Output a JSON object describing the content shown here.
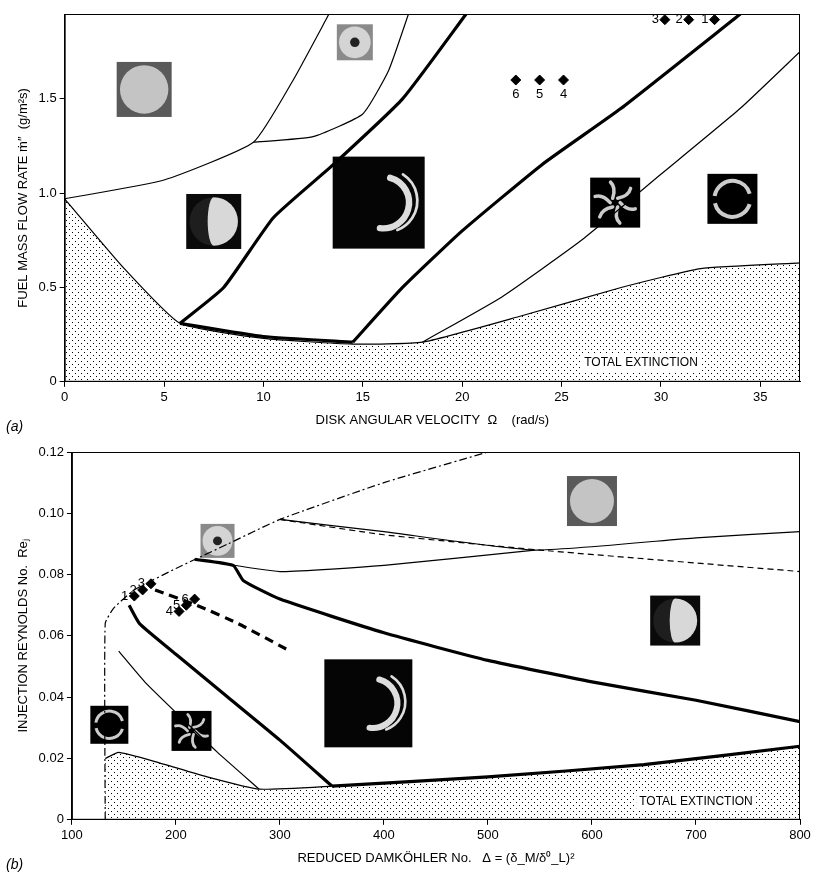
{
  "chart_data": [
    {
      "type": "line",
      "panel_label": "(a)",
      "xlabel": "DISK ANGULAR VELOCITY  Ω    (rad/s)",
      "ylabel": "FUEL MASS FLOW RATE ṁ″  (g/m²s)",
      "xlim": [
        0,
        37
      ],
      "xticks": [
        0,
        5,
        10,
        15,
        20,
        25,
        30,
        35
      ],
      "ylim": [
        0,
        1.95
      ],
      "yticks": [
        0,
        0.5,
        {
          "value": 1,
          "label": "1.0"
        },
        1.5
      ],
      "grid": false,
      "legend": "none",
      "annotations": [
        {
          "text": "TOTAL EXTINCTION",
          "x": 29,
          "y": 0.1
        }
      ],
      "series": [
        {
          "type": "area",
          "line_style": "solid",
          "color": "#000000",
          "x": [
            0,
            3,
            5.8,
            10,
            14.5,
            18,
            23,
            28,
            32,
            37
          ],
          "values": [
            0.97,
            0.6,
            0.31,
            0.23,
            0.2,
            0.21,
            0.35,
            0.5,
            0.6,
            0.63
          ]
        },
        {
          "type": "line",
          "line_style": "thick",
          "color": "#000000",
          "x": [
            5.8,
            10,
            14.5
          ],
          "values": [
            0.31,
            0.24,
            0.21
          ]
        },
        {
          "type": "line",
          "line_style": "thick",
          "color": "#000000",
          "x": [
            5.8,
            8,
            10.5,
            13.5,
            17,
            20.2
          ],
          "values": [
            0.31,
            0.5,
            0.87,
            1.15,
            1.5,
            1.95
          ]
        },
        {
          "type": "line",
          "line_style": "thick",
          "color": "#000000",
          "x": [
            14.5,
            17,
            20,
            24,
            28,
            34
          ],
          "values": [
            0.21,
            0.5,
            0.8,
            1.15,
            1.45,
            1.95
          ]
        },
        {
          "type": "line",
          "line_style": "solid",
          "color": "#000000",
          "x": [
            18,
            22,
            26,
            30,
            34,
            37
          ],
          "values": [
            0.21,
            0.45,
            0.75,
            1.1,
            1.45,
            1.75
          ]
        },
        {
          "type": "line",
          "line_style": "solid",
          "color": "#000000",
          "x": [
            0,
            5,
            9.5,
            11.5,
            13.3
          ],
          "values": [
            0.97,
            1.07,
            1.27,
            1.6,
            1.95
          ]
        },
        {
          "type": "line",
          "line_style": "solid",
          "color": "#000000",
          "x": [
            9.5,
            12.5,
            15,
            16.3,
            17.3
          ],
          "values": [
            1.27,
            1.3,
            1.42,
            1.65,
            1.95
          ]
        },
        {
          "type": "scatter",
          "marker": "diamond",
          "color": "#000000",
          "x": [
            32.7,
            31.4,
            30.2
          ],
          "values": [
            1.92,
            1.92,
            1.92
          ],
          "labels": [
            "1",
            "2",
            "3"
          ]
        },
        {
          "type": "scatter",
          "marker": "diamond",
          "color": "#000000",
          "x": [
            25.1,
            23.9,
            22.7
          ],
          "values": [
            1.6,
            1.6,
            1.6
          ],
          "labels": [
            "4",
            "5",
            "6"
          ]
        }
      ]
    },
    {
      "type": "line",
      "panel_label": "(b)",
      "xlabel": "REDUCED DAMKÖHLER No.   Δ = (δ_M/δ⁰_L)²",
      "ylabel": "INJECTION REYNOLDS No.  Reⱼ",
      "xlim": [
        100,
        800
      ],
      "xticks": [
        100,
        200,
        300,
        400,
        500,
        600,
        700,
        800
      ],
      "ylim": [
        0,
        0.12
      ],
      "yticks": [
        0,
        0.02,
        0.04,
        0.06,
        0.08,
        {
          "value": 0.1,
          "label": "0.10"
        },
        0.12
      ],
      "grid": false,
      "legend": "none",
      "annotations": [
        {
          "text": "TOTAL EXTINCTION",
          "x": 700,
          "y": 0.006
        }
      ],
      "series": [
        {
          "type": "area",
          "line_style": "solid",
          "color": "#000000",
          "x": [
            132,
            145,
            180,
            230,
            280,
            350,
            500,
            650,
            800
          ],
          "values": [
            0.02,
            0.022,
            0.019,
            0.014,
            0.01,
            0.011,
            0.014,
            0.018,
            0.024
          ]
        },
        {
          "type": "line",
          "line_style": "dashdot",
          "color": "#000000",
          "x": [
            132,
            132,
            140,
            160,
            200,
            250,
            300,
            400,
            500
          ],
          "values": [
            0,
            0.064,
            0.069,
            0.075,
            0.082,
            0.09,
            0.098,
            0.11,
            0.12
          ]
        },
        {
          "type": "line",
          "line_style": "solid",
          "color": "#000000",
          "x": [
            300,
            400,
            545,
            700,
            800
          ],
          "values": [
            0.098,
            0.094,
            0.088,
            0.092,
            0.094
          ]
        },
        {
          "type": "line",
          "line_style": "dashed",
          "color": "#000000",
          "x": [
            300,
            400,
            550,
            800
          ],
          "values": [
            0.098,
            0.093,
            0.088,
            0.081
          ]
        },
        {
          "type": "line",
          "line_style": "solid",
          "color": "#000000",
          "x": [
            220,
            300,
            400,
            545
          ],
          "values": [
            0.085,
            0.081,
            0.083,
            0.088
          ]
        },
        {
          "type": "line",
          "line_style": "thick",
          "color": "#000000",
          "x": [
            218,
            255,
            265,
            300,
            400,
            500,
            600,
            700,
            800
          ],
          "values": [
            0.085,
            0.083,
            0.078,
            0.072,
            0.061,
            0.052,
            0.045,
            0.039,
            0.032
          ]
        },
        {
          "type": "line",
          "line_style": "thick",
          "color": "#000000",
          "x": [
            350,
            500,
            650,
            800
          ],
          "values": [
            0.011,
            0.014,
            0.018,
            0.024
          ]
        },
        {
          "type": "line",
          "line_style": "thick",
          "color": "#000000",
          "x": [
            155,
            165,
            200,
            250,
            300,
            350
          ],
          "values": [
            0.07,
            0.064,
            0.054,
            0.04,
            0.026,
            0.011
          ]
        },
        {
          "type": "line",
          "line_style": "thick_dashed",
          "color": "#000000",
          "x": [
            180,
            220,
            260,
            310
          ],
          "values": [
            0.075,
            0.07,
            0.064,
            0.055
          ]
        },
        {
          "type": "line",
          "line_style": "solid",
          "color": "#000000",
          "x": [
            145,
            170,
            200,
            240,
            280
          ],
          "values": [
            0.055,
            0.045,
            0.035,
            0.022,
            0.01
          ]
        },
        {
          "type": "scatter",
          "marker": "diamond",
          "color": "#000000",
          "x": [
            160,
            168,
            176
          ],
          "values": [
            0.073,
            0.075,
            0.077
          ],
          "labels": [
            "1",
            "2",
            "3"
          ]
        },
        {
          "type": "scatter",
          "marker": "diamond",
          "color": "#000000",
          "x": [
            203,
            210,
            218
          ],
          "values": [
            0.068,
            0.07,
            0.072
          ],
          "labels": [
            "4",
            "5",
            "6"
          ]
        }
      ]
    }
  ]
}
